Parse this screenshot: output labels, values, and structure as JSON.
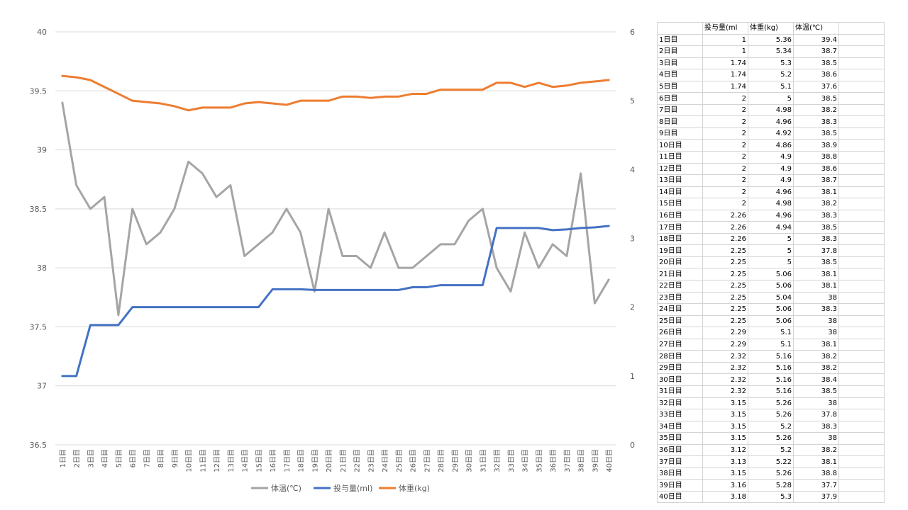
{
  "chart_data": {
    "type": "line",
    "categories": [
      "1日目",
      "2日目",
      "3日目",
      "4日目",
      "5日目",
      "6日目",
      "7日目",
      "8日目",
      "9日目",
      "10日目",
      "11日目",
      "12日目",
      "13日目",
      "14日目",
      "15日目",
      "16日目",
      "17日目",
      "18日目",
      "19日目",
      "20日目",
      "21日目",
      "22日目",
      "23日目",
      "24日目",
      "25日目",
      "26日目",
      "27日目",
      "28日目",
      "29日目",
      "30日目",
      "31日目",
      "32日目",
      "33日目",
      "34日目",
      "35日目",
      "36日目",
      "37日目",
      "38日目",
      "39日目",
      "40日目"
    ],
    "y_left": {
      "min": 36.5,
      "max": 40,
      "step": 0.5,
      "ticks": [
        "36.5",
        "37",
        "37.5",
        "38",
        "38.5",
        "39",
        "39.5",
        "40"
      ]
    },
    "y_right": {
      "min": 0,
      "max": 6,
      "step": 1,
      "ticks": [
        "0",
        "1",
        "2",
        "3",
        "4",
        "5",
        "6"
      ]
    },
    "grid": true,
    "legend_position": "bottom",
    "series": [
      {
        "name": "体温(℃)",
        "axis": "left",
        "color": "#a5a5a5",
        "values": [
          39.4,
          38.7,
          38.5,
          38.6,
          37.6,
          38.5,
          38.2,
          38.3,
          38.5,
          38.9,
          38.8,
          38.6,
          38.7,
          38.1,
          38.2,
          38.3,
          38.5,
          38.3,
          37.8,
          38.5,
          38.1,
          38.1,
          38,
          38.3,
          38,
          38,
          38.1,
          38.2,
          38.2,
          38.4,
          38.5,
          38,
          37.8,
          38.3,
          38,
          38.2,
          38.1,
          38.8,
          37.7,
          37.9
        ]
      },
      {
        "name": "投与量(ml)",
        "axis": "right",
        "color": "#4472c4",
        "values": [
          1,
          1,
          1.74,
          1.74,
          1.74,
          2,
          2,
          2,
          2,
          2,
          2,
          2,
          2,
          2,
          2,
          2.26,
          2.26,
          2.26,
          2.25,
          2.25,
          2.25,
          2.25,
          2.25,
          2.25,
          2.25,
          2.29,
          2.29,
          2.32,
          2.32,
          2.32,
          2.32,
          3.15,
          3.15,
          3.15,
          3.15,
          3.12,
          3.13,
          3.15,
          3.16,
          3.18
        ]
      },
      {
        "name": "体重(kg)",
        "axis": "right",
        "color": "#ed7d31",
        "values": [
          5.36,
          5.34,
          5.3,
          5.2,
          5.1,
          5,
          4.98,
          4.96,
          4.92,
          4.86,
          4.9,
          4.9,
          4.9,
          4.96,
          4.98,
          4.96,
          4.94,
          5,
          5,
          5,
          5.06,
          5.06,
          5.04,
          5.06,
          5.06,
          5.1,
          5.1,
          5.16,
          5.16,
          5.16,
          5.16,
          5.26,
          5.26,
          5.2,
          5.26,
          5.2,
          5.22,
          5.26,
          5.28,
          5.3
        ]
      }
    ],
    "legend_order": [
      0,
      1,
      2
    ]
  },
  "table": {
    "headers": [
      "",
      "投与量(ml",
      "体重(kg)",
      "体温(℃)",
      ""
    ],
    "rows": [
      [
        "1日目",
        "1",
        "5.36",
        "39.4"
      ],
      [
        "2日目",
        "1",
        "5.34",
        "38.7"
      ],
      [
        "3日目",
        "1.74",
        "5.3",
        "38.5"
      ],
      [
        "4日目",
        "1.74",
        "5.2",
        "38.6"
      ],
      [
        "5日目",
        "1.74",
        "5.1",
        "37.6"
      ],
      [
        "6日目",
        "2",
        "5",
        "38.5"
      ],
      [
        "7日目",
        "2",
        "4.98",
        "38.2"
      ],
      [
        "8日目",
        "2",
        "4.96",
        "38.3"
      ],
      [
        "9日目",
        "2",
        "4.92",
        "38.5"
      ],
      [
        "10日目",
        "2",
        "4.86",
        "38.9"
      ],
      [
        "11日目",
        "2",
        "4.9",
        "38.8"
      ],
      [
        "12日目",
        "2",
        "4.9",
        "38.6"
      ],
      [
        "13日目",
        "2",
        "4.9",
        "38.7"
      ],
      [
        "14日目",
        "2",
        "4.96",
        "38.1"
      ],
      [
        "15日目",
        "2",
        "4.98",
        "38.2"
      ],
      [
        "16日目",
        "2.26",
        "4.96",
        "38.3"
      ],
      [
        "17日目",
        "2.26",
        "4.94",
        "38.5"
      ],
      [
        "18日目",
        "2.26",
        "5",
        "38.3"
      ],
      [
        "19日目",
        "2.25",
        "5",
        "37.8"
      ],
      [
        "20日目",
        "2.25",
        "5",
        "38.5"
      ],
      [
        "21日目",
        "2.25",
        "5.06",
        "38.1"
      ],
      [
        "22日目",
        "2.25",
        "5.06",
        "38.1"
      ],
      [
        "23日目",
        "2.25",
        "5.04",
        "38"
      ],
      [
        "24日目",
        "2.25",
        "5.06",
        "38.3"
      ],
      [
        "25日目",
        "2.25",
        "5.06",
        "38"
      ],
      [
        "26日目",
        "2.29",
        "5.1",
        "38"
      ],
      [
        "27日目",
        "2.29",
        "5.1",
        "38.1"
      ],
      [
        "28日目",
        "2.32",
        "5.16",
        "38.2"
      ],
      [
        "29日目",
        "2.32",
        "5.16",
        "38.2"
      ],
      [
        "30日目",
        "2.32",
        "5.16",
        "38.4"
      ],
      [
        "31日目",
        "2.32",
        "5.16",
        "38.5"
      ],
      [
        "32日目",
        "3.15",
        "5.26",
        "38"
      ],
      [
        "33日目",
        "3.15",
        "5.26",
        "37.8"
      ],
      [
        "34日目",
        "3.15",
        "5.2",
        "38.3"
      ],
      [
        "35日目",
        "3.15",
        "5.26",
        "38"
      ],
      [
        "36日目",
        "3.12",
        "5.2",
        "38.2"
      ],
      [
        "37日目",
        "3.13",
        "5.22",
        "38.1"
      ],
      [
        "38日目",
        "3.15",
        "5.26",
        "38.8"
      ],
      [
        "39日目",
        "3.16",
        "5.28",
        "37.7"
      ],
      [
        "40日目",
        "3.18",
        "5.3",
        "37.9"
      ]
    ]
  }
}
